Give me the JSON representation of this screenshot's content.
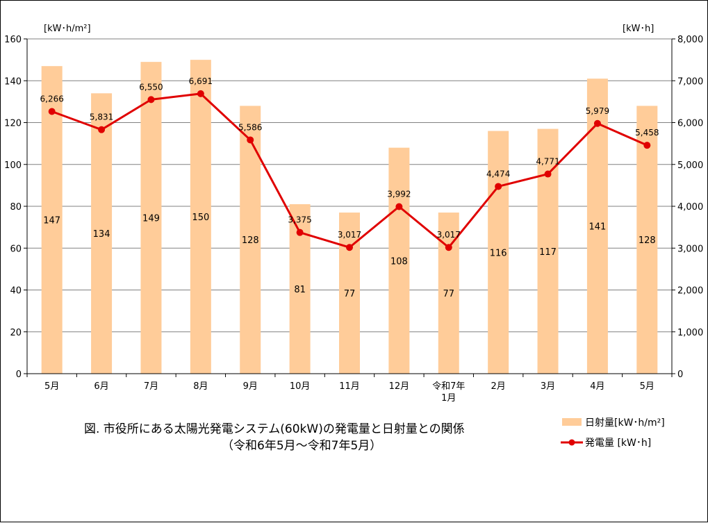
{
  "chart_data": {
    "type": "bar",
    "categories": [
      "5月",
      "6月",
      "7月",
      "8月",
      "9月",
      "10月",
      "11月",
      "12月",
      "令和7年\n1月",
      "2月",
      "3月",
      "4月",
      "5月"
    ],
    "series": [
      {
        "name": "日射量[kW･h/m²]",
        "type": "bar",
        "axis": "left",
        "color": "#FFCC99",
        "values": [
          147,
          134,
          149,
          150,
          128,
          81,
          77,
          108,
          77,
          116,
          117,
          141,
          128
        ],
        "labels": [
          "147",
          "134",
          "149",
          "150",
          "128",
          "81",
          "77",
          "108",
          "77",
          "116",
          "117",
          "141",
          "128"
        ]
      },
      {
        "name": "発電量 [kW･h]",
        "type": "line",
        "axis": "right",
        "color": "#E00000",
        "values": [
          6266,
          5831,
          6550,
          6691,
          5586,
          3375,
          3017,
          3992,
          3017,
          4474,
          4771,
          5979,
          5458
        ],
        "labels": [
          "6,266",
          "5,831",
          "6,550",
          "6,691",
          "5,586",
          "3,375",
          "3,017",
          "3,992",
          "3,017",
          "4,474",
          "4,771",
          "5,979",
          "5,458"
        ]
      }
    ],
    "left_axis": {
      "label": "[kW･h/m²]",
      "ylim": [
        0,
        160
      ],
      "ticks": [
        0,
        20,
        40,
        60,
        80,
        100,
        120,
        140,
        160
      ],
      "tick_labels": [
        "0",
        "20",
        "40",
        "60",
        "80",
        "100",
        "120",
        "140",
        "160"
      ]
    },
    "right_axis": {
      "label": "[kW･h]",
      "ylim": [
        0,
        8000
      ],
      "ticks": [
        0,
        1000,
        2000,
        3000,
        4000,
        5000,
        6000,
        7000,
        8000
      ],
      "tick_labels": [
        "0",
        "1,000",
        "2,000",
        "3,000",
        "4,000",
        "5,000",
        "6,000",
        "7,000",
        "8,000"
      ]
    },
    "title_lines": [
      "図. 市役所にある太陽光発電システム(60kW)の発電量と日射量との関係",
      "（令和6年5月～令和7年5月）"
    ],
    "grid": true,
    "legend_position": "bottom-right"
  }
}
